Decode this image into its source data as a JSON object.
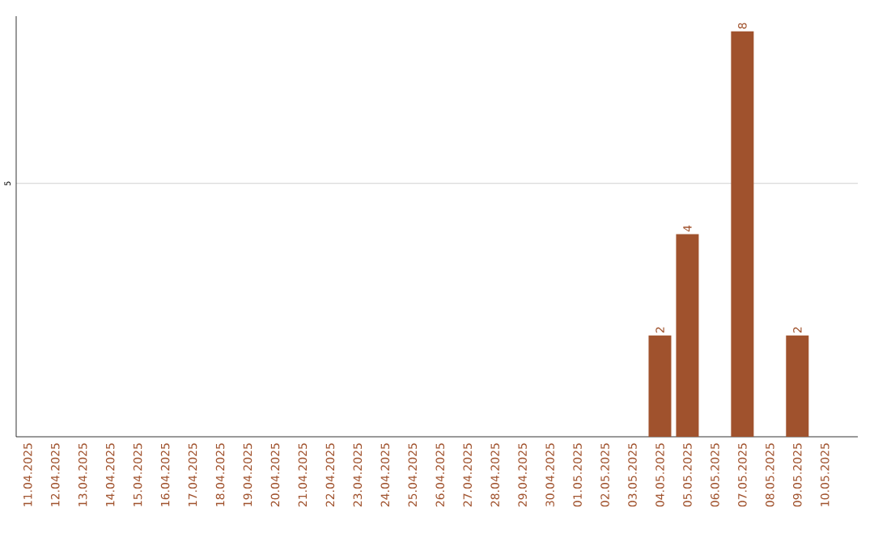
{
  "chart_data": {
    "type": "bar",
    "categories": [
      "11.04.2025",
      "12.04.2025",
      "13.04.2025",
      "14.04.2025",
      "15.04.2025",
      "16.04.2025",
      "17.04.2025",
      "18.04.2025",
      "19.04.2025",
      "20.04.2025",
      "21.04.2025",
      "22.04.2025",
      "23.04.2025",
      "24.04.2025",
      "25.04.2025",
      "26.04.2025",
      "27.04.2025",
      "28.04.2025",
      "29.04.2025",
      "30.04.2025",
      "01.05.2025",
      "02.05.2025",
      "03.05.2025",
      "04.05.2025",
      "05.05.2025",
      "06.05.2025",
      "07.05.2025",
      "08.05.2025",
      "09.05.2025",
      "10.05.2025"
    ],
    "values": [
      null,
      null,
      null,
      null,
      null,
      null,
      null,
      null,
      null,
      null,
      null,
      null,
      null,
      null,
      null,
      null,
      null,
      null,
      null,
      null,
      null,
      null,
      null,
      2,
      4,
      null,
      8,
      null,
      2,
      null
    ],
    "color": "#a0522d",
    "ylim": [
      0,
      8.3
    ],
    "yticks": [
      5
    ],
    "grid": "y",
    "data_labels": true
  }
}
